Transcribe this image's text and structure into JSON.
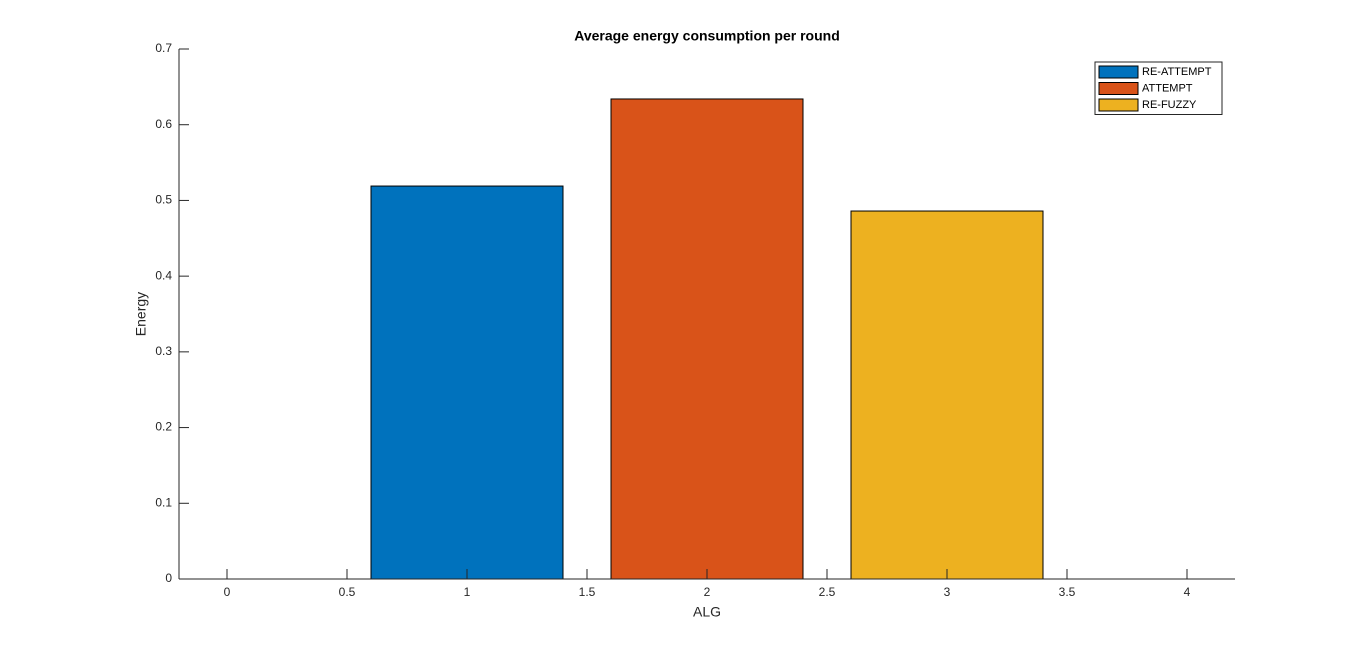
{
  "chart_data": {
    "type": "bar",
    "title": "Average energy consumption per round",
    "xlabel": "ALG",
    "ylabel": "Energy",
    "series": [
      {
        "name": "RE-ATTEMPT",
        "color": "#0072bd",
        "x": [
          1
        ],
        "values": [
          0.519
        ]
      },
      {
        "name": "ATTEMPT",
        "color": "#d95319",
        "x": [
          2
        ],
        "values": [
          0.634
        ]
      },
      {
        "name": "RE-FUZZY",
        "color": "#edb120",
        "x": [
          3
        ],
        "values": [
          0.486
        ]
      }
    ],
    "xlim": [
      -0.2,
      4.2
    ],
    "xticks": [
      0,
      0.5,
      1,
      1.5,
      2,
      2.5,
      3,
      3.5,
      4
    ],
    "ylim": [
      0,
      0.7
    ],
    "yticks": [
      0,
      0.1,
      0.2,
      0.3,
      0.4,
      0.5,
      0.6,
      0.7
    ],
    "grid": false,
    "legend": "top-right"
  }
}
